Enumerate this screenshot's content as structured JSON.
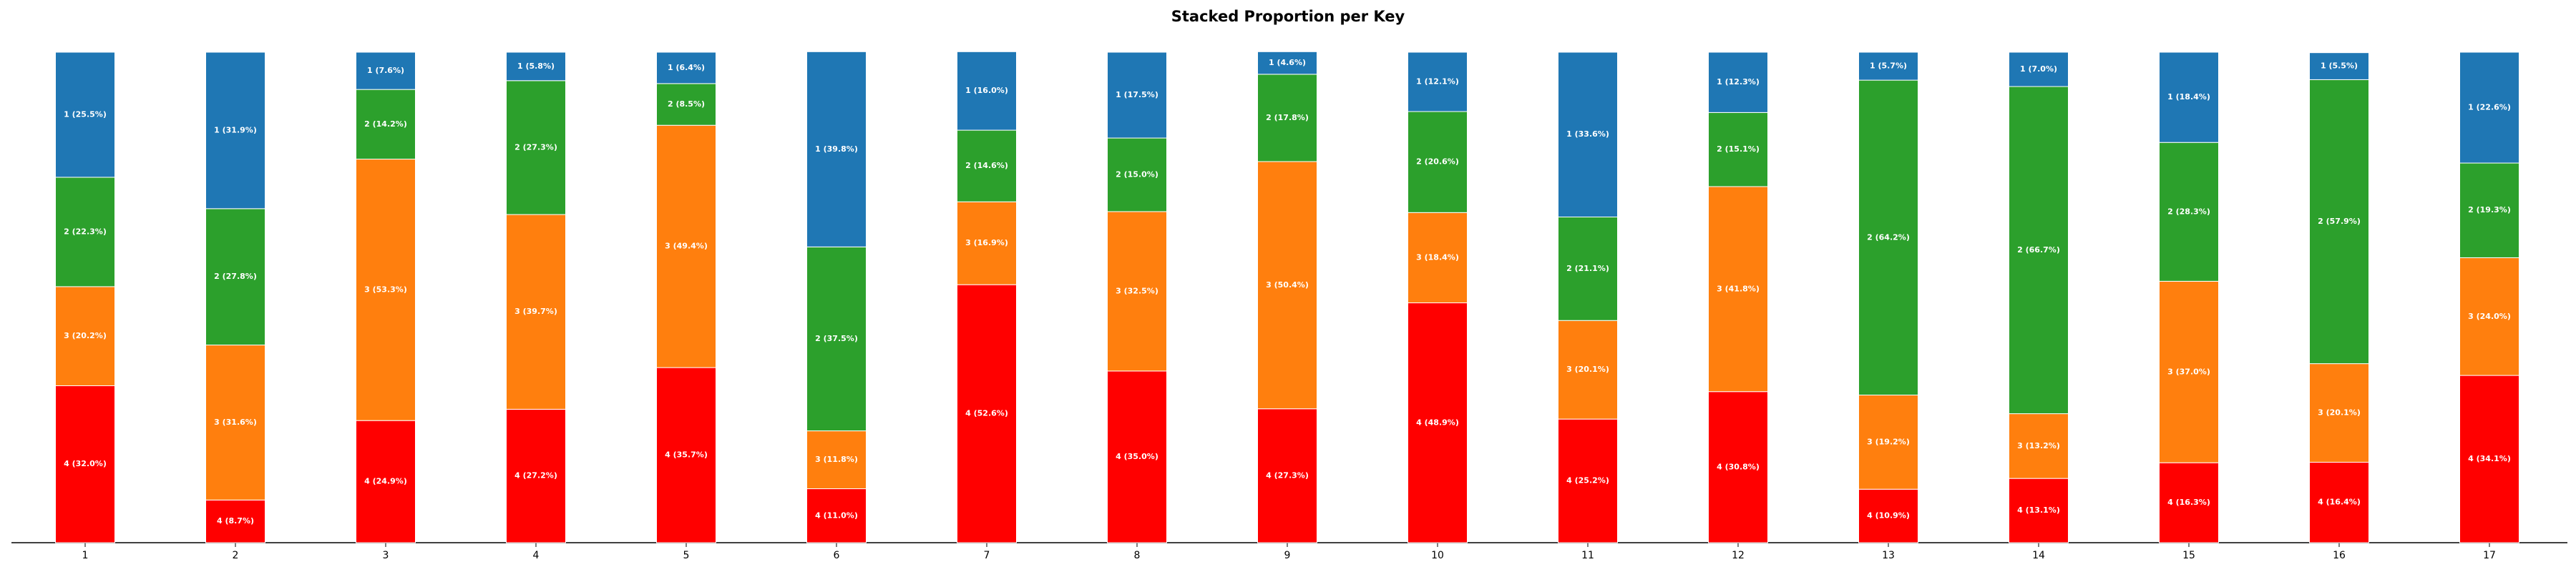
{
  "chart_data": {
    "type": "stacked_bar",
    "title": "Stacked Proportion per Key",
    "categories": [
      "1",
      "2",
      "3",
      "4",
      "5",
      "6",
      "7",
      "8",
      "9",
      "10",
      "11",
      "12",
      "13",
      "14",
      "15",
      "16",
      "17"
    ],
    "ylim": [
      0,
      100
    ],
    "series": [
      {
        "color": "#ff0000",
        "values": [
          32.0,
          8.7,
          24.9,
          27.2,
          35.7,
          11.0,
          52.6,
          35.0,
          27.3,
          48.9,
          25.2,
          30.8,
          10.9,
          13.1,
          16.3,
          16.4,
          34.1
        ],
        "value_labels": [
          "4 (32.0%)",
          "4 (8.7%)",
          "4 (24.9%)",
          "4 (27.2%)",
          "4 (35.7%)",
          "4 (11.0%)",
          "4 (52.6%)",
          "4 (35.0%)",
          "4 (27.3%)",
          "4 (48.9%)",
          "4 (25.2%)",
          "4 (30.8%)",
          "4 (10.9%)",
          "4 (13.1%)",
          "4 (16.3%)",
          "4 (16.4%)",
          "4 (34.1%)"
        ]
      },
      {
        "color": "#ff7f0e",
        "values": [
          20.2,
          31.6,
          53.3,
          39.7,
          49.4,
          11.8,
          16.9,
          32.5,
          50.4,
          18.4,
          20.1,
          41.8,
          19.2,
          13.2,
          37.0,
          20.1,
          24.0
        ],
        "value_labels": [
          "3 (20.2%)",
          "3 (31.6%)",
          "3 (53.3%)",
          "3 (39.7%)",
          "3 (49.4%)",
          "3 (11.8%)",
          "3 (16.9%)",
          "3 (32.5%)",
          "3 (50.4%)",
          "3 (18.4%)",
          "3 (20.1%)",
          "3 (41.8%)",
          "3 (19.2%)",
          "3 (13.2%)",
          "3 (37.0%)",
          "3 (20.1%)",
          "3 (24.0%)"
        ]
      },
      {
        "color": "#2ca02c",
        "values": [
          22.3,
          27.8,
          14.2,
          27.3,
          8.5,
          37.5,
          14.6,
          15.0,
          17.8,
          20.6,
          21.1,
          15.1,
          64.2,
          66.7,
          28.3,
          57.9,
          19.3
        ],
        "value_labels": [
          "2 (22.3%)",
          "2 (27.8%)",
          "2 (14.2%)",
          "2 (27.3%)",
          "2 (8.5%)",
          "2 (37.5%)",
          "2 (14.6%)",
          "2 (15.0%)",
          "2 (17.8%)",
          "2 (20.6%)",
          "2 (21.1%)",
          "2 (15.1%)",
          "2 (64.2%)",
          "2 (66.7%)",
          "2 (28.3%)",
          "2 (57.9%)",
          "2 (19.3%)"
        ]
      },
      {
        "color": "#1f77b4",
        "values": [
          25.5,
          31.9,
          7.6,
          5.8,
          6.4,
          39.8,
          16.0,
          17.5,
          4.6,
          12.1,
          33.6,
          12.3,
          5.7,
          7.0,
          18.4,
          5.5,
          22.6
        ],
        "value_labels": [
          "1 (25.5%)",
          "1 (31.9%)",
          "1 (7.6%)",
          "1 (5.8%)",
          "1 (6.4%)",
          "1 (39.8%)",
          "1 (16.0%)",
          "1 (17.5%)",
          "1 (4.6%)",
          "1 (12.1%)",
          "1 (33.6%)",
          "1 (12.3%)",
          "1 (5.7%)",
          "1 (7.0%)",
          "1 (18.4%)",
          "1 (5.5%)",
          "1 (22.6%)"
        ]
      }
    ]
  }
}
